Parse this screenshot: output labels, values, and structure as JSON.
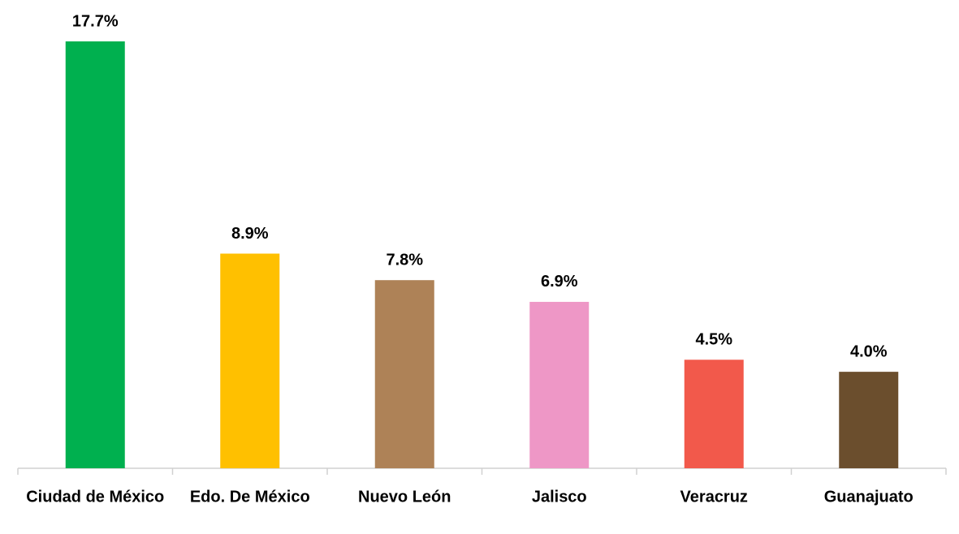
{
  "chart_data": {
    "type": "bar",
    "categories": [
      "Ciudad de México",
      "Edo. De México",
      "Nuevo León",
      "Jalisco",
      "Veracruz",
      "Guanajuato"
    ],
    "values": [
      17.7,
      8.9,
      7.8,
      6.9,
      4.5,
      4.0
    ],
    "value_labels": [
      "17.7%",
      "8.9%",
      "7.8%",
      "6.9%",
      "4.5%",
      "4.0%"
    ],
    "colors": [
      "#00b04f",
      "#ffc000",
      "#ae8257",
      "#ee97c6",
      "#f2594b",
      "#6b4e2d"
    ]
  }
}
